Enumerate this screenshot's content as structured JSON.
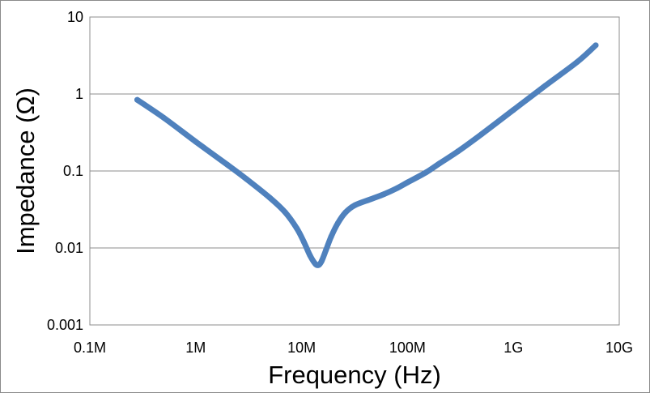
{
  "chart_data": {
    "type": "line",
    "title": "",
    "xlabel": "Frequency (Hz)",
    "ylabel": "Impedance (Ω)",
    "x_scale": "log",
    "y_scale": "log",
    "xlim": [
      100000,
      10000000000
    ],
    "ylim": [
      0.001,
      10
    ],
    "x_ticks": [
      {
        "value": 100000,
        "label": "0.1M"
      },
      {
        "value": 1000000,
        "label": "1M"
      },
      {
        "value": 10000000,
        "label": "10M"
      },
      {
        "value": 100000000,
        "label": "100M"
      },
      {
        "value": 1000000000,
        "label": "1G"
      },
      {
        "value": 10000000000,
        "label": "10G"
      }
    ],
    "y_ticks": [
      {
        "value": 0.001,
        "label": "0.001"
      },
      {
        "value": 0.01,
        "label": "0.01"
      },
      {
        "value": 0.1,
        "label": "0.1"
      },
      {
        "value": 1,
        "label": "1"
      },
      {
        "value": 10,
        "label": "10"
      }
    ],
    "grid": "horizontal",
    "legend": "none",
    "series": [
      {
        "color": "#4f81bd",
        "points": [
          {
            "x": 280000,
            "y": 0.84
          },
          {
            "x": 500000,
            "y": 0.49
          },
          {
            "x": 1000000,
            "y": 0.24
          },
          {
            "x": 2000000,
            "y": 0.12
          },
          {
            "x": 3000000,
            "y": 0.079
          },
          {
            "x": 5000000,
            "y": 0.045
          },
          {
            "x": 7000000,
            "y": 0.029
          },
          {
            "x": 9000000,
            "y": 0.018
          },
          {
            "x": 10500000,
            "y": 0.012
          },
          {
            "x": 12000000,
            "y": 0.008
          },
          {
            "x": 13500000,
            "y": 0.0062
          },
          {
            "x": 14500000,
            "y": 0.006
          },
          {
            "x": 15500000,
            "y": 0.0068
          },
          {
            "x": 17000000,
            "y": 0.0094
          },
          {
            "x": 19000000,
            "y": 0.014
          },
          {
            "x": 22000000,
            "y": 0.021
          },
          {
            "x": 26000000,
            "y": 0.029
          },
          {
            "x": 32000000,
            "y": 0.036
          },
          {
            "x": 45000000,
            "y": 0.043
          },
          {
            "x": 60000000,
            "y": 0.05
          },
          {
            "x": 80000000,
            "y": 0.06
          },
          {
            "x": 100000000,
            "y": 0.071
          },
          {
            "x": 150000000,
            "y": 0.096
          },
          {
            "x": 200000000,
            "y": 0.125
          },
          {
            "x": 300000000,
            "y": 0.18
          },
          {
            "x": 500000000,
            "y": 0.3
          },
          {
            "x": 1000000000,
            "y": 0.62
          },
          {
            "x": 2000000000,
            "y": 1.28
          },
          {
            "x": 4000000000,
            "y": 2.6
          },
          {
            "x": 6000000000,
            "y": 4.3
          }
        ]
      }
    ]
  }
}
